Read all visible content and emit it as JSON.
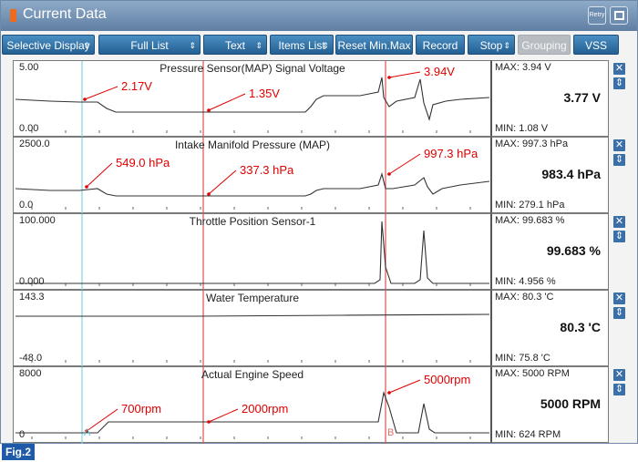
{
  "window": {
    "title": "Current Data",
    "retry_label": "Retry"
  },
  "toolbar": [
    {
      "label": "Selective Display",
      "arrow": "⇕",
      "disabled": false
    },
    {
      "label": "Full List",
      "arrow": "⇕",
      "disabled": false
    },
    {
      "label": "Text",
      "arrow": "⇕",
      "disabled": false
    },
    {
      "label": "Items List",
      "arrow": "⇕",
      "disabled": false
    },
    {
      "label": "Reset Min.Max",
      "arrow": "",
      "disabled": false
    },
    {
      "label": "Record",
      "arrow": "",
      "disabled": false
    },
    {
      "label": "Stop",
      "arrow": "⇕",
      "disabled": false
    },
    {
      "label": "Grouping",
      "arrow": "",
      "disabled": true
    },
    {
      "label": "VSS",
      "arrow": "",
      "disabled": false
    }
  ],
  "panels": [
    {
      "title": "Pressure Sensor(MAP) Signal Voltage",
      "ymax": "5.00",
      "ymin": "0.00",
      "max": "MAX:  3.94 V",
      "current": "3.77 V",
      "min": "MIN:  1.08 V",
      "annotations": [
        "2.17V",
        "1.35V",
        "3.94V"
      ],
      "chart_data": {
        "type": "line",
        "ylim": [
          0,
          5
        ],
        "levels": {
          "cursor_a": 2.17,
          "mid": 1.35,
          "cursor_b": 3.94
        }
      }
    },
    {
      "title": "Intake Manifold Pressure (MAP)",
      "ymax": "2500.0",
      "ymin": "0.0",
      "max": "MAX: 997.3 hPa",
      "current": "983.4 hPa",
      "min": "MIN: 279.1 hPa",
      "annotations": [
        "549.0 hPa",
        "337.3 hPa",
        "997.3 hPa"
      ],
      "chart_data": {
        "type": "line",
        "ylim": [
          0,
          2500
        ],
        "levels": {
          "cursor_a": 549.0,
          "mid": 337.3,
          "cursor_b": 997.3
        }
      }
    },
    {
      "title": "Throttle Position Sensor-1",
      "ymax": "100.000",
      "ymin": "0.000",
      "max": "MAX: 99.683 %",
      "current": "99.683 %",
      "min": "MIN: 4.956 %",
      "annotations": [],
      "chart_data": {
        "type": "line",
        "ylim": [
          0,
          100
        ]
      }
    },
    {
      "title": "Water Temperature",
      "ymax": "143.3",
      "ymin": "-48.0",
      "max": "MAX:  80.3 'C",
      "current": "80.3 'C",
      "min": "MIN:  75.8 'C",
      "annotations": [],
      "chart_data": {
        "type": "line",
        "ylim": [
          -48.0,
          143.3
        ]
      }
    },
    {
      "title": "Actual Engine Speed",
      "ymax": "8000",
      "ymin": "0",
      "max": "MAX:  5000 RPM",
      "current": "5000 RPM",
      "min": "MIN:   624 RPM",
      "annotations": [
        "700rpm",
        "2000rpm",
        "5000rpm"
      ],
      "chart_data": {
        "type": "line",
        "ylim": [
          0,
          8000
        ],
        "levels": {
          "cursor_a": 700,
          "mid": 2000,
          "cursor_b": 5000
        }
      }
    }
  ],
  "cursors": {
    "a_label": "A",
    "b_label": "B"
  },
  "icons": {
    "close": "close-icon",
    "expand": "expand-icon"
  },
  "colors": {
    "accent": "#245f92",
    "annotation": "#e00000",
    "cursor_a": "#7fd8e0",
    "cursor_b": "#e05050"
  },
  "figure_label": "Fig.2"
}
